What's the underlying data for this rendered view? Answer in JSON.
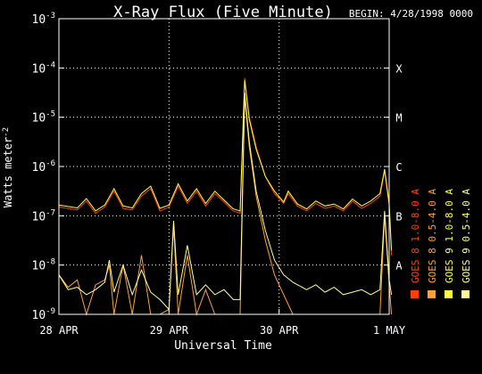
{
  "chart_data": {
    "type": "line",
    "title": "X-Ray Flux (Five Minute)",
    "begin_label": "BEGIN: 4/28/1998 0000",
    "xlabel": "Universal Time",
    "ylabel": "Watts meter",
    "ylabel_exp": "-2",
    "y_scale": "log",
    "ylim": [
      1e-09,
      0.001
    ],
    "xlim_hours": [
      0,
      72
    ],
    "x_ticks": [
      {
        "label": "28 APR",
        "hour": 0
      },
      {
        "label": "29 APR",
        "hour": 24
      },
      {
        "label": "30 APR",
        "hour": 48
      },
      {
        "label": "1 MAY",
        "hour": 72
      }
    ],
    "y_ticks": [
      {
        "base": "10",
        "exp": "-9",
        "value": -9
      },
      {
        "base": "10",
        "exp": "-8",
        "value": -8
      },
      {
        "base": "10",
        "exp": "-7",
        "value": -7
      },
      {
        "base": "10",
        "exp": "-6",
        "value": -6
      },
      {
        "base": "10",
        "exp": "-5",
        "value": -5
      },
      {
        "base": "10",
        "exp": "-4",
        "value": -4
      },
      {
        "base": "10",
        "exp": "-3",
        "value": -3
      }
    ],
    "flare_classes": [
      {
        "label": "A",
        "value": -8
      },
      {
        "label": "B",
        "value": -7
      },
      {
        "label": "C",
        "value": -6
      },
      {
        "label": "M",
        "value": -5
      },
      {
        "label": "X",
        "value": -4
      }
    ],
    "grid": true,
    "legend_position": "right, vertical",
    "legend": [
      {
        "label": "GOES 8 1.0-8.0 A",
        "color": "#ff4000"
      },
      {
        "label": "GOES 8 0.5-4.0 A",
        "color": "#ffa030"
      },
      {
        "label": "GOES 9 1.0-8.0 A",
        "color": "#ffff40"
      },
      {
        "label": "GOES 9 0.5-4.0 A",
        "color": "#ffff90"
      }
    ],
    "series": [
      {
        "name": "GOES 8 1.0-8.0 A",
        "color": "#ff4000",
        "points": [
          [
            0,
            -6.82
          ],
          [
            4,
            -6.88
          ],
          [
            6,
            -6.7
          ],
          [
            8,
            -6.95
          ],
          [
            10,
            -6.82
          ],
          [
            12,
            -6.5
          ],
          [
            14,
            -6.85
          ],
          [
            16,
            -6.88
          ],
          [
            18,
            -6.6
          ],
          [
            20,
            -6.45
          ],
          [
            22,
            -6.9
          ],
          [
            24,
            -6.82
          ],
          [
            26,
            -6.4
          ],
          [
            28,
            -6.75
          ],
          [
            30,
            -6.5
          ],
          [
            32,
            -6.8
          ],
          [
            34,
            -6.55
          ],
          [
            36,
            -6.72
          ],
          [
            38,
            -6.9
          ],
          [
            39.5,
            -6.95
          ],
          [
            40.5,
            -4.2
          ],
          [
            41.5,
            -5.0
          ],
          [
            43,
            -5.6
          ],
          [
            45,
            -6.2
          ],
          [
            47,
            -6.55
          ],
          [
            49,
            -6.75
          ],
          [
            50,
            -6.55
          ],
          [
            52,
            -6.8
          ],
          [
            54,
            -6.9
          ],
          [
            56,
            -6.75
          ],
          [
            58,
            -6.85
          ],
          [
            60,
            -6.8
          ],
          [
            62,
            -6.9
          ],
          [
            64,
            -6.7
          ],
          [
            66,
            -6.85
          ],
          [
            68,
            -6.75
          ],
          [
            70,
            -6.6
          ],
          [
            71,
            -6.1
          ],
          [
            72,
            -6.8
          ],
          [
            72.5,
            -7.8
          ]
        ]
      },
      {
        "name": "GOES 8 0.5-4.0 A",
        "color": "#ffa030",
        "points": [
          [
            0,
            -8.2
          ],
          [
            2,
            -8.45
          ],
          [
            4,
            -8.3
          ],
          [
            6,
            -9.0
          ],
          [
            8,
            -8.4
          ],
          [
            10,
            -8.3
          ],
          [
            11,
            -8.0
          ],
          [
            12,
            -9.0
          ],
          [
            14,
            -8.0
          ],
          [
            16,
            -9.0
          ],
          [
            18,
            -7.8
          ],
          [
            20,
            -9.0
          ],
          [
            22,
            -9.0
          ],
          [
            24,
            -8.9
          ],
          [
            25,
            -7.2
          ],
          [
            26,
            -9.0
          ],
          [
            28,
            -7.8
          ],
          [
            30,
            -9.0
          ],
          [
            32,
            -8.5
          ],
          [
            34,
            -9.0
          ],
          [
            36,
            -9.0
          ],
          [
            38,
            -9.0
          ],
          [
            39.5,
            -9.0
          ],
          [
            40.5,
            -4.6
          ],
          [
            41.5,
            -5.6
          ],
          [
            43,
            -6.6
          ],
          [
            45,
            -7.5
          ],
          [
            47,
            -8.2
          ],
          [
            49,
            -8.6
          ],
          [
            51,
            -9.0
          ],
          [
            54,
            -9.0
          ],
          [
            58,
            -9.0
          ],
          [
            62,
            -9.0
          ],
          [
            66,
            -9.0
          ],
          [
            70,
            -9.0
          ],
          [
            71,
            -7.0
          ],
          [
            72,
            -8.4
          ],
          [
            72.5,
            -9.0
          ]
        ]
      },
      {
        "name": "GOES 9 1.0-8.0 A",
        "color": "#ffff40",
        "points": [
          [
            0,
            -6.78
          ],
          [
            4,
            -6.84
          ],
          [
            6,
            -6.65
          ],
          [
            8,
            -6.9
          ],
          [
            10,
            -6.78
          ],
          [
            12,
            -6.45
          ],
          [
            14,
            -6.8
          ],
          [
            16,
            -6.84
          ],
          [
            18,
            -6.55
          ],
          [
            20,
            -6.4
          ],
          [
            22,
            -6.85
          ],
          [
            24,
            -6.78
          ],
          [
            26,
            -6.35
          ],
          [
            28,
            -6.7
          ],
          [
            30,
            -6.45
          ],
          [
            32,
            -6.75
          ],
          [
            34,
            -6.5
          ],
          [
            36,
            -6.68
          ],
          [
            38,
            -6.86
          ],
          [
            39.5,
            -6.9
          ],
          [
            40.5,
            -4.25
          ],
          [
            41.5,
            -5.05
          ],
          [
            43,
            -5.65
          ],
          [
            45,
            -6.2
          ],
          [
            47,
            -6.5
          ],
          [
            49,
            -6.72
          ],
          [
            50,
            -6.5
          ],
          [
            52,
            -6.76
          ],
          [
            54,
            -6.86
          ],
          [
            56,
            -6.7
          ],
          [
            58,
            -6.8
          ],
          [
            60,
            -6.76
          ],
          [
            62,
            -6.86
          ],
          [
            64,
            -6.66
          ],
          [
            66,
            -6.8
          ],
          [
            68,
            -6.7
          ],
          [
            70,
            -6.55
          ],
          [
            71,
            -6.05
          ],
          [
            72,
            -6.75
          ],
          [
            72.5,
            -7.7
          ]
        ]
      },
      {
        "name": "GOES 9 0.5-4.0 A",
        "color": "#ffff90",
        "points": [
          [
            0,
            -8.2
          ],
          [
            2,
            -8.5
          ],
          [
            4,
            -8.45
          ],
          [
            6,
            -8.6
          ],
          [
            8,
            -8.5
          ],
          [
            10,
            -8.35
          ],
          [
            11,
            -7.9
          ],
          [
            12,
            -8.55
          ],
          [
            14,
            -8.0
          ],
          [
            16,
            -8.6
          ],
          [
            18,
            -8.1
          ],
          [
            20,
            -8.55
          ],
          [
            22,
            -8.7
          ],
          [
            24,
            -8.9
          ],
          [
            25,
            -7.1
          ],
          [
            26,
            -8.6
          ],
          [
            28,
            -7.6
          ],
          [
            30,
            -8.6
          ],
          [
            32,
            -8.4
          ],
          [
            34,
            -8.6
          ],
          [
            36,
            -8.5
          ],
          [
            38,
            -8.7
          ],
          [
            39.5,
            -8.7
          ],
          [
            40.5,
            -4.5
          ],
          [
            41.5,
            -5.5
          ],
          [
            43,
            -6.5
          ],
          [
            45,
            -7.3
          ],
          [
            47,
            -7.9
          ],
          [
            49,
            -8.2
          ],
          [
            51,
            -8.35
          ],
          [
            54,
            -8.5
          ],
          [
            56,
            -8.4
          ],
          [
            58,
            -8.55
          ],
          [
            60,
            -8.45
          ],
          [
            62,
            -8.6
          ],
          [
            64,
            -8.55
          ],
          [
            66,
            -8.5
          ],
          [
            68,
            -8.6
          ],
          [
            70,
            -8.5
          ],
          [
            71,
            -6.9
          ],
          [
            72,
            -8.3
          ],
          [
            72.5,
            -8.6
          ]
        ]
      }
    ]
  }
}
